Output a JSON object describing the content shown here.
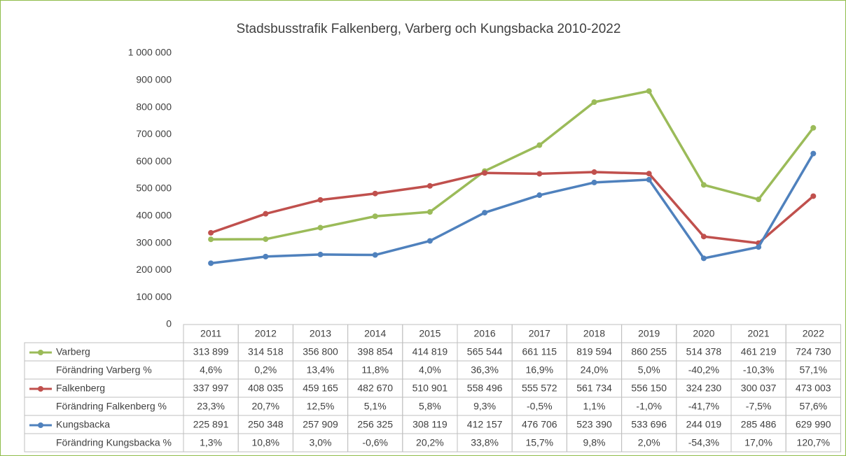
{
  "chart_data": {
    "type": "line",
    "title": "Stadsbusstrafik Falkenberg, Varberg och Kungsbacka 2010-2022",
    "categories": [
      "2011",
      "2012",
      "2013",
      "2014",
      "2015",
      "2016",
      "2017",
      "2018",
      "2019",
      "2020",
      "2021",
      "2022"
    ],
    "ylim": [
      0,
      1000000
    ],
    "yticks": [
      0,
      {
        "value": 100000,
        "label": "100 000"
      },
      {
        "value": 200000,
        "label": "200 000"
      },
      {
        "value": 300000,
        "label": "300 000"
      },
      {
        "value": 400000,
        "label": "400 000"
      },
      {
        "value": 500000,
        "label": "500 000"
      },
      {
        "value": 600000,
        "label": "600 000"
      },
      {
        "value": 700000,
        "label": "700 000"
      },
      {
        "value": 800000,
        "label": "800 000"
      },
      {
        "value": 900000,
        "label": "900 000"
      },
      {
        "value": 1000000,
        "label": "1 000 000"
      }
    ],
    "grid": false,
    "series": [
      {
        "name": "Varberg",
        "color": "#9bbb59",
        "values": [
          313899,
          314518,
          356800,
          398854,
          414819,
          565544,
          661115,
          819594,
          860255,
          514378,
          461219,
          724730
        ],
        "value_labels": [
          "313 899",
          "314 518",
          "356 800",
          "398 854",
          "414 819",
          "565 544",
          "661 115",
          "819 594",
          "860 255",
          "514 378",
          "461 219",
          "724 730"
        ],
        "change": {
          "name": "Förändring Varberg %",
          "values": [
            4.6,
            0.2,
            13.4,
            11.8,
            4.0,
            36.3,
            16.9,
            24.0,
            5.0,
            -40.2,
            -10.3,
            57.1
          ],
          "value_labels": [
            "4,6%",
            "0,2%",
            "13,4%",
            "11,8%",
            "4,0%",
            "36,3%",
            "16,9%",
            "24,0%",
            "5,0%",
            "-40,2%",
            "-10,3%",
            "57,1%"
          ]
        }
      },
      {
        "name": "Falkenberg",
        "color": "#c0504d",
        "values": [
          337997,
          408035,
          459165,
          482670,
          510901,
          558496,
          555572,
          561734,
          556150,
          324230,
          300037,
          473003
        ],
        "value_labels": [
          "337 997",
          "408 035",
          "459 165",
          "482 670",
          "510 901",
          "558 496",
          "555 572",
          "561 734",
          "556 150",
          "324 230",
          "300 037",
          "473 003"
        ],
        "change": {
          "name": "Förändring Falkenberg %",
          "values": [
            23.3,
            20.7,
            12.5,
            5.1,
            5.8,
            9.3,
            -0.5,
            1.1,
            -1.0,
            -41.7,
            -7.5,
            57.6
          ],
          "value_labels": [
            "23,3%",
            "20,7%",
            "12,5%",
            "5,1%",
            "5,8%",
            "9,3%",
            "-0,5%",
            "1,1%",
            "-1,0%",
            "-41,7%",
            "-7,5%",
            "57,6%"
          ]
        }
      },
      {
        "name": "Kungsbacka",
        "color": "#4f81bd",
        "values": [
          225891,
          250348,
          257909,
          256325,
          308119,
          412157,
          476706,
          523390,
          533696,
          244019,
          285486,
          629990
        ],
        "value_labels": [
          "225 891",
          "250 348",
          "257 909",
          "256 325",
          "308 119",
          "412 157",
          "476 706",
          "523 390",
          "533 696",
          "244 019",
          "285 486",
          "629 990"
        ],
        "change": {
          "name": "Förändring Kungsbacka %",
          "values": [
            1.3,
            10.8,
            3.0,
            -0.6,
            20.2,
            33.8,
            15.7,
            9.8,
            2.0,
            -54.3,
            17.0,
            120.7
          ],
          "value_labels": [
            "1,3%",
            "10,8%",
            "3,0%",
            "-0,6%",
            "20,2%",
            "33,8%",
            "15,7%",
            "9,8%",
            "2,0%",
            "-54,3%",
            "17,0%",
            "120,7%"
          ]
        }
      }
    ]
  }
}
